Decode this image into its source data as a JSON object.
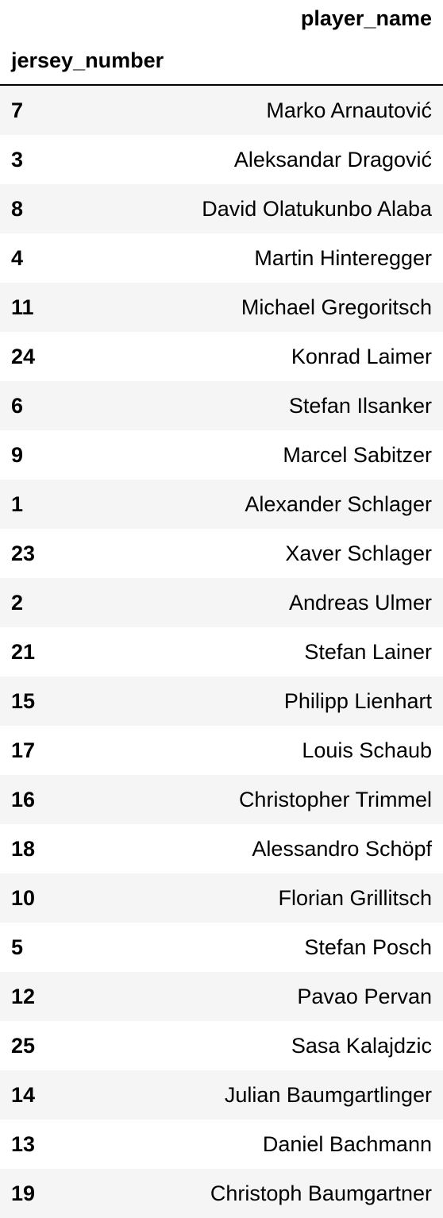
{
  "table": {
    "column_header": "player_name",
    "index_name": "jersey_number",
    "rows": [
      {
        "jersey_number": "7",
        "player_name": "Marko Arnautović"
      },
      {
        "jersey_number": "3",
        "player_name": "Aleksandar Dragović"
      },
      {
        "jersey_number": "8",
        "player_name": "David Olatukunbo Alaba"
      },
      {
        "jersey_number": "4",
        "player_name": "Martin Hinteregger"
      },
      {
        "jersey_number": "11",
        "player_name": "Michael Gregoritsch"
      },
      {
        "jersey_number": "24",
        "player_name": "Konrad Laimer"
      },
      {
        "jersey_number": "6",
        "player_name": "Stefan Ilsanker"
      },
      {
        "jersey_number": "9",
        "player_name": "Marcel Sabitzer"
      },
      {
        "jersey_number": "1",
        "player_name": "Alexander Schlager"
      },
      {
        "jersey_number": "23",
        "player_name": "Xaver Schlager"
      },
      {
        "jersey_number": "2",
        "player_name": "Andreas Ulmer"
      },
      {
        "jersey_number": "21",
        "player_name": "Stefan Lainer"
      },
      {
        "jersey_number": "15",
        "player_name": "Philipp Lienhart"
      },
      {
        "jersey_number": "17",
        "player_name": "Louis Schaub"
      },
      {
        "jersey_number": "16",
        "player_name": "Christopher Trimmel"
      },
      {
        "jersey_number": "18",
        "player_name": "Alessandro Schöpf"
      },
      {
        "jersey_number": "10",
        "player_name": "Florian Grillitsch"
      },
      {
        "jersey_number": "5",
        "player_name": "Stefan Posch"
      },
      {
        "jersey_number": "12",
        "player_name": "Pavao Pervan"
      },
      {
        "jersey_number": "25",
        "player_name": "Sasa Kalajdzic"
      },
      {
        "jersey_number": "14",
        "player_name": "Julian Baumgartlinger"
      },
      {
        "jersey_number": "13",
        "player_name": "Daniel Bachmann"
      },
      {
        "jersey_number": "19",
        "player_name": "Christoph Baumgartner"
      }
    ]
  }
}
